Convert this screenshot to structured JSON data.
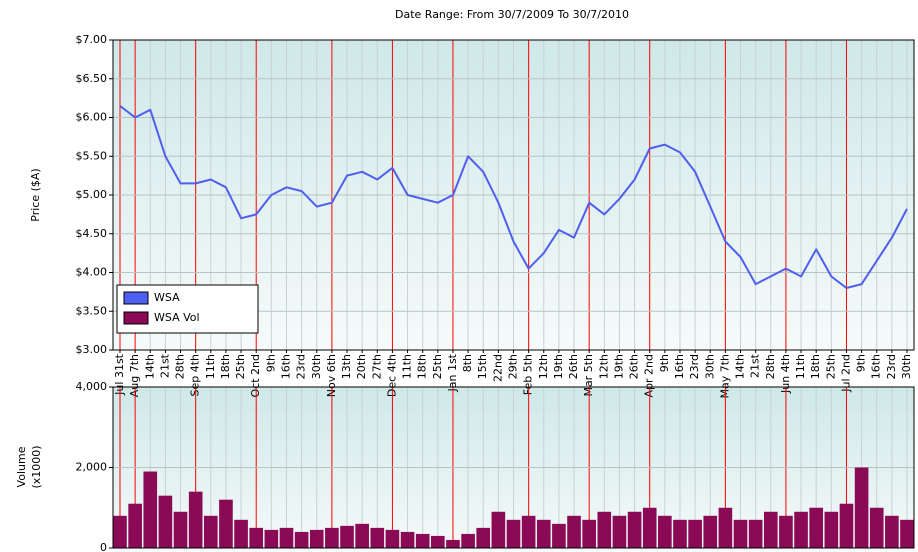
{
  "chart_data": [
    {
      "type": "line",
      "title": "Date Range: From 30/7/2009 To 30/7/2010",
      "ylabel": "Price ($A)",
      "categories": [
        "Jul 31st",
        "Aug 7th",
        "14th",
        "21st",
        "28th",
        "Sep 4th",
        "11th",
        "18th",
        "25th",
        "Oct 2nd",
        "9th",
        "16th",
        "23rd",
        "30th",
        "Nov 6th",
        "13th",
        "20th",
        "27th",
        "Dec 4th",
        "11th",
        "18th",
        "25th",
        "Jan 1st",
        "8th",
        "15th",
        "22nd",
        "29th",
        "Feb 5th",
        "12th",
        "19th",
        "26th",
        "Mar 5th",
        "12th",
        "19th",
        "26th",
        "Apr 2nd",
        "9th",
        "16th",
        "23rd",
        "30th",
        "May 7th",
        "14th",
        "21st",
        "28th",
        "Jun 4th",
        "11th",
        "18th",
        "25th",
        "Jul 2nd",
        "9th",
        "16th",
        "23rd",
        "30th"
      ],
      "series": [
        {
          "name": "WSA",
          "color": "#4f5ff0",
          "values": [
            6.15,
            6.0,
            6.1,
            5.5,
            5.15,
            5.15,
            5.2,
            5.1,
            4.7,
            4.75,
            5.0,
            5.1,
            5.05,
            4.85,
            4.9,
            5.25,
            5.3,
            5.2,
            5.35,
            5.0,
            4.95,
            4.9,
            5.0,
            5.5,
            5.3,
            4.9,
            4.4,
            4.05,
            4.25,
            4.55,
            4.45,
            4.9,
            4.75,
            4.95,
            5.2,
            5.6,
            5.65,
            5.55,
            5.3,
            4.85,
            4.4,
            4.2,
            3.85,
            3.95,
            4.05,
            3.95,
            4.3,
            3.95,
            3.8,
            3.85,
            4.15,
            4.45,
            4.82
          ]
        }
      ],
      "ylim": [
        3,
        7
      ],
      "yticks": [
        {
          "value": 3,
          "label": "$3.00"
        },
        {
          "value": 3.5,
          "label": "$3.50"
        },
        {
          "value": 4,
          "label": "$4.00"
        },
        {
          "value": 4.5,
          "label": "$4.50"
        },
        {
          "value": 5,
          "label": "$5.00"
        },
        {
          "value": 5.5,
          "label": "$5.50"
        },
        {
          "value": 6,
          "label": "$6.00"
        },
        {
          "value": 6.5,
          "label": "$6.50"
        },
        {
          "value": 7,
          "label": "$7.00"
        }
      ],
      "grid": true,
      "legend": "lower left"
    },
    {
      "type": "bar",
      "ylabel": [
        "Volume",
        "(x1000)"
      ],
      "series": [
        {
          "name": "WSA Vol",
          "color": "#8a0a55",
          "values": [
            800,
            1100,
            1900,
            1300,
            900,
            1400,
            800,
            1200,
            700,
            500,
            450,
            500,
            400,
            450,
            500,
            550,
            600,
            500,
            450,
            400,
            350,
            300,
            200,
            350,
            500,
            900,
            700,
            800,
            700,
            600,
            800,
            700,
            900,
            800,
            900,
            1000,
            800,
            700,
            700,
            800,
            1000,
            700,
            700,
            900,
            800,
            900,
            1000,
            900,
            1100,
            2000,
            1000,
            800,
            700
          ]
        }
      ],
      "ylim": [
        0,
        4000
      ],
      "yticks": [
        0,
        {
          "value": 2000,
          "label": "2,000"
        },
        {
          "value": 4000,
          "label": "4,000"
        }
      ],
      "grid": true
    }
  ]
}
